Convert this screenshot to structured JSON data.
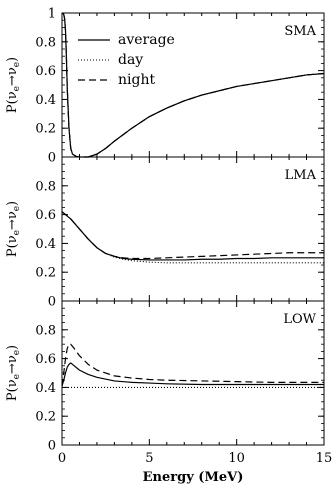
{
  "chart_data": {
    "type": "line",
    "xlabel": "Energy (MeV)",
    "xlim": [
      0,
      15
    ],
    "xticks": [
      "0",
      "5",
      "10",
      "15"
    ],
    "legend": {
      "placement": "top-left of first panel",
      "entries": [
        {
          "label": "average",
          "style": "solid"
        },
        {
          "label": "day",
          "style": "dotted"
        },
        {
          "label": "night",
          "style": "dashed"
        }
      ]
    },
    "panels": [
      {
        "title": "SMA",
        "ylabel_main": "P(ν",
        "ylabel_sub1": "e",
        "ylabel_arrow": "→ν",
        "ylabel_sub2": "e",
        "ylabel_close": ")",
        "ylim": [
          0,
          1
        ],
        "yticks": [
          "0",
          "0.2",
          "0.4",
          "0.6",
          "0.8",
          "1"
        ],
        "series": [
          {
            "name": "average",
            "style": "solid",
            "x": [
              0.05,
              0.1,
              0.15,
              0.2,
              0.25,
              0.3,
              0.4,
              0.5,
              0.6,
              0.8,
              1.0,
              1.5,
              2.0,
              2.5,
              3,
              4,
              5,
              6,
              7,
              8,
              9,
              10,
              11,
              12,
              13,
              14,
              15
            ],
            "y": [
              1.0,
              0.99,
              0.96,
              0.88,
              0.7,
              0.48,
              0.2,
              0.06,
              0.02,
              0.005,
              0.0,
              0.0,
              0.02,
              0.06,
              0.11,
              0.2,
              0.28,
              0.34,
              0.39,
              0.43,
              0.46,
              0.49,
              0.51,
              0.53,
              0.55,
              0.57,
              0.58
            ]
          },
          {
            "name": "day",
            "style": "dotted",
            "x": [
              0.05,
              0.1,
              0.15,
              0.2,
              0.25,
              0.3,
              0.4,
              0.5,
              0.6,
              0.8,
              1.0,
              1.5,
              2.0,
              2.5,
              3,
              4,
              5,
              6,
              7,
              8,
              9,
              10,
              11,
              12,
              13,
              14,
              15
            ],
            "y": [
              1.0,
              0.99,
              0.96,
              0.88,
              0.7,
              0.48,
              0.2,
              0.06,
              0.02,
              0.005,
              0.0,
              0.0,
              0.02,
              0.06,
              0.11,
              0.2,
              0.28,
              0.34,
              0.39,
              0.43,
              0.46,
              0.49,
              0.51,
              0.53,
              0.55,
              0.57,
              0.58
            ]
          },
          {
            "name": "night",
            "style": "dashed",
            "x": [
              0.05,
              0.1,
              0.15,
              0.2,
              0.25,
              0.3,
              0.4,
              0.5,
              0.6,
              0.8,
              1.0,
              1.5,
              2.0,
              2.5,
              3,
              4,
              5,
              6,
              7,
              8,
              9,
              10,
              11,
              12,
              13,
              14,
              15
            ],
            "y": [
              1.0,
              0.99,
              0.96,
              0.88,
              0.7,
              0.48,
              0.2,
              0.06,
              0.02,
              0.005,
              0.0,
              0.0,
              0.02,
              0.06,
              0.11,
              0.2,
              0.28,
              0.34,
              0.39,
              0.43,
              0.46,
              0.49,
              0.51,
              0.53,
              0.55,
              0.57,
              0.58
            ]
          }
        ]
      },
      {
        "title": "LMA",
        "ylabel_main": "P(ν",
        "ylabel_sub1": "e",
        "ylabel_arrow": "→ν",
        "ylabel_sub2": "e",
        "ylabel_close": ")",
        "ylim": [
          0,
          1
        ],
        "yticks": [
          "0",
          "0.2",
          "0.4",
          "0.6",
          "0.8"
        ],
        "series": [
          {
            "name": "average",
            "style": "solid",
            "x": [
              0,
              0.5,
              1,
              1.5,
              2,
              2.5,
              3,
              3.5,
              4,
              5,
              6,
              7,
              8,
              9,
              10,
              11,
              12,
              13,
              14,
              15
            ],
            "y": [
              0.62,
              0.57,
              0.5,
              0.43,
              0.37,
              0.33,
              0.31,
              0.295,
              0.29,
              0.285,
              0.285,
              0.285,
              0.29,
              0.29,
              0.295,
              0.295,
              0.3,
              0.3,
              0.3,
              0.3
            ]
          },
          {
            "name": "day",
            "style": "dotted",
            "x": [
              0,
              0.5,
              1,
              1.5,
              2,
              2.5,
              3,
              3.5,
              4,
              5,
              6,
              7,
              8,
              9,
              10,
              11,
              12,
              13,
              14,
              15
            ],
            "y": [
              0.62,
              0.57,
              0.5,
              0.43,
              0.37,
              0.33,
              0.305,
              0.29,
              0.28,
              0.27,
              0.265,
              0.265,
              0.265,
              0.265,
              0.265,
              0.265,
              0.265,
              0.265,
              0.265,
              0.265
            ]
          },
          {
            "name": "night",
            "style": "dashed",
            "x": [
              0,
              0.5,
              1,
              1.5,
              2,
              2.5,
              3,
              3.5,
              4,
              5,
              6,
              7,
              8,
              9,
              10,
              11,
              12,
              13,
              14,
              15
            ],
            "y": [
              0.62,
              0.57,
              0.5,
              0.43,
              0.37,
              0.33,
              0.31,
              0.3,
              0.295,
              0.295,
              0.3,
              0.305,
              0.31,
              0.315,
              0.32,
              0.325,
              0.33,
              0.335,
              0.335,
              0.335
            ]
          }
        ]
      },
      {
        "title": "LOW",
        "ylabel_main": "P(ν",
        "ylabel_sub1": "e",
        "ylabel_arrow": "→ν",
        "ylabel_sub2": "e",
        "ylabel_close": ")",
        "ylim": [
          0,
          1
        ],
        "yticks": [
          "0",
          "0.2",
          "0.4",
          "0.6",
          "0.8"
        ],
        "series": [
          {
            "name": "average",
            "style": "solid",
            "x": [
              0,
              0.1,
              0.2,
              0.3,
              0.4,
              0.5,
              0.7,
              1.0,
              1.5,
              2,
              3,
              4,
              5,
              6,
              8,
              10,
              12,
              15
            ],
            "y": [
              0.41,
              0.45,
              0.5,
              0.54,
              0.56,
              0.57,
              0.55,
              0.52,
              0.49,
              0.47,
              0.445,
              0.435,
              0.43,
              0.425,
              0.42,
              0.42,
              0.42,
              0.42
            ]
          },
          {
            "name": "day",
            "style": "dotted",
            "x": [
              0,
              1,
              2,
              3,
              5,
              8,
              10,
              12,
              15
            ],
            "y": [
              0.4,
              0.4,
              0.4,
              0.4,
              0.4,
              0.4,
              0.4,
              0.4,
              0.4
            ]
          },
          {
            "name": "night",
            "style": "dashed",
            "x": [
              0,
              0.1,
              0.2,
              0.3,
              0.4,
              0.5,
              0.7,
              1.0,
              1.5,
              2,
              3,
              4,
              5,
              6,
              8,
              10,
              12,
              15
            ],
            "y": [
              0.41,
              0.5,
              0.6,
              0.67,
              0.7,
              0.7,
              0.67,
              0.62,
              0.56,
              0.52,
              0.48,
              0.465,
              0.455,
              0.45,
              0.445,
              0.44,
              0.435,
              0.435
            ]
          }
        ]
      }
    ]
  }
}
